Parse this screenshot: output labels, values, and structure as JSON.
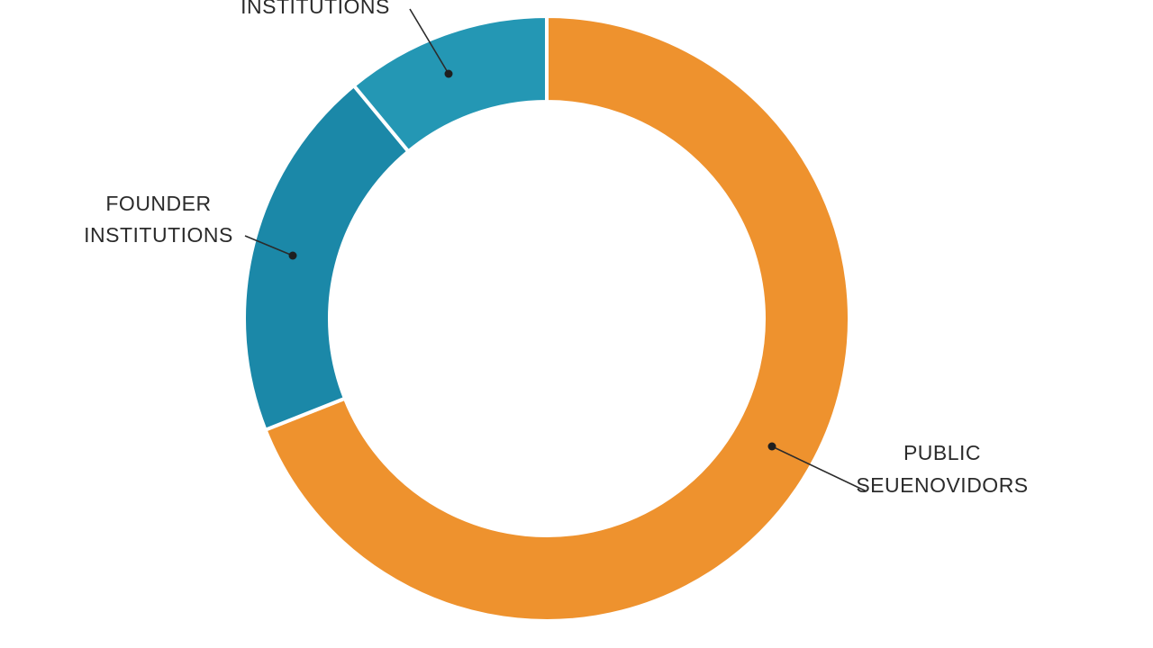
{
  "chart_data": {
    "type": "pie",
    "variant": "donut",
    "title": "",
    "legend": "none",
    "slices": [
      {
        "label_lines": [
          "PUBLIC",
          "SEUENOVIDORS"
        ],
        "value": 69,
        "color": "#EE922E"
      },
      {
        "label_lines": [
          "FOUNDER",
          "INSTITUTIONS"
        ],
        "value": 20,
        "color": "#1B88A8"
      },
      {
        "label_lines": [
          "INSTITUTIONS"
        ],
        "value": 11,
        "color": "#2497B4"
      }
    ]
  }
}
